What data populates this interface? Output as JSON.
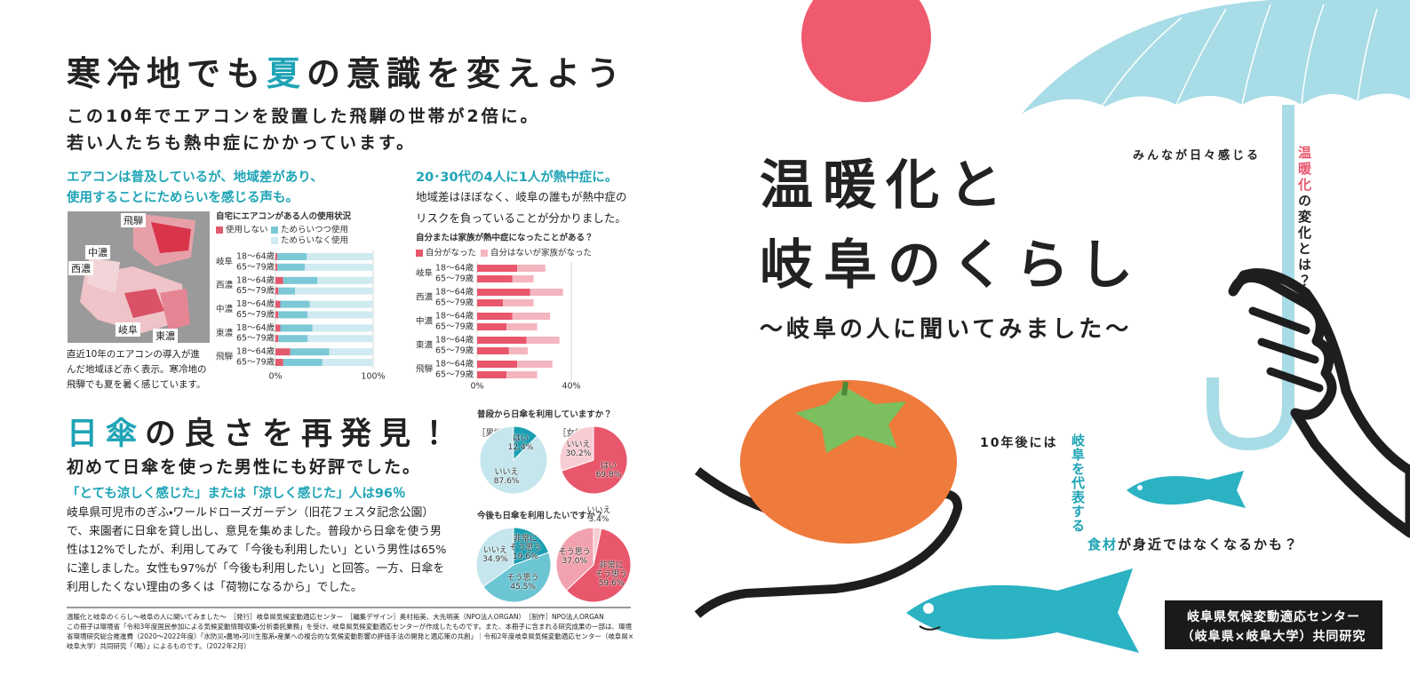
{
  "header": {
    "title": [
      "寒冷地でも",
      "夏",
      "の意識を変えよう"
    ],
    "lead": [
      "この10年でエアコンを設置した飛騨の世帯が2倍に。",
      "若い人たちも熱中症にかかっています。"
    ]
  },
  "aircon_section": {
    "heading": [
      "エアコンは普及しているが、地域差があり、",
      "使用することにためらいを感じる声も。"
    ],
    "map_labels": [
      "飛騨",
      "中濃",
      "西濃",
      "岐阜",
      "東濃"
    ],
    "map_caption": "直近10年のエアコンの導入が進んだ地域ほど赤く表示。寒冷地の飛騨でも夏を暑く感じています。"
  },
  "heat_section": {
    "heading": "20･30代の4人に1人が熱中症に。",
    "text": "地域差はほぼなく、岐阜の誰もが熱中症のリスクを負っていることが分かりました。"
  },
  "parasol_section": {
    "title": [
      "日傘",
      "の良さを再発見！"
    ],
    "subtitle": "初めて日傘を使った男性にも好評でした。",
    "highlight": "「とても涼しく感じた」または「涼しく感じた」人は96％",
    "body": "岐阜県可児市のぎふ・ワールドローズガーデン（旧花フェスタ記念公園）で、来園者に日傘を貸し出し、意見を集めました。普段から日傘を使う男性は12%でしたが、利用してみて「今後も利用したい」という男性は65%に達しました。女性も97%が「今後も利用したい」と回答。一方、日傘を利用したくない理由の多くは「荷物になるから」でした。"
  },
  "footer": {
    "lines": [
      "温暖化と岐阜のくらし〜岐阜の人に聞いてみました〜　［発行］岐阜県気候変動適応センター　［編集デザイン］奥村裕美、大先明美（NPO法人ORGAN）　［制作］NPO法人ORGAN",
      "この冊子は環境省「令和3年度国民参加による気候変動情報収集・分析委託業務」を受け、岐阜県気候変動適応センターが作成したものです。また、本冊子に含まれる研究成果の一部は、環境省環境研究総合推進費（2020〜2022年度）「水防災・農地・河川生態系・産業への複合的な気候変動影響の評価手法の開発と適応策の共創」｜令和2年度岐阜県気候変動適応センター（岐阜県×岐阜大学）共同研究「（略）」によるものです。（2022年2月）"
    ]
  },
  "cover": {
    "title": [
      "温暖化と",
      "岐阜のくらし"
    ],
    "subtitle": "〜岐阜の人に聞いてみました〜",
    "tagline": "みんなが日々感じる",
    "vertical": [
      "温暖化",
      "の変化とは？"
    ],
    "future": {
      "lead": "10年後には",
      "vertical": "岐阜を代表する",
      "tail": [
        "食材",
        "が身近ではなくなるかも？"
      ]
    },
    "credit": [
      "岐阜県気候変動適応センター",
      "（岐阜県×岐阜大学）共同研究"
    ]
  },
  "chart_data": [
    {
      "type": "bar",
      "title": "自宅にエアコンがある人の使用状況",
      "groups": [
        "岐阜",
        "西濃",
        "中濃",
        "東濃",
        "飛騨"
      ],
      "categories": [
        "18〜64歳",
        "65〜79歳",
        "18〜64歳",
        "65〜79歳",
        "18〜64歳",
        "65〜79歳",
        "18〜64歳",
        "65〜79歳",
        "18〜64歳",
        "65〜79歳"
      ],
      "series": [
        {
          "name": "使用しない",
          "color": "#e25a6e",
          "values": [
            2,
            2,
            8,
            3,
            5,
            3,
            5,
            3,
            15,
            8
          ]
        },
        {
          "name": "ためらいつつ使用",
          "color": "#7cc8d6",
          "values": [
            30,
            28,
            35,
            17,
            30,
            30,
            33,
            30,
            40,
            40
          ]
        },
        {
          "name": "ためらいなく使用",
          "color": "#cfeaf0",
          "values": [
            68,
            70,
            57,
            80,
            65,
            67,
            62,
            67,
            45,
            52
          ]
        }
      ],
      "xlim": [
        0,
        100
      ],
      "xticks": [
        {
          "value": 0,
          "label": "0%"
        },
        {
          "value": 100,
          "label": "100%"
        }
      ],
      "grid": true
    },
    {
      "type": "bar",
      "title": "自分または家族が熱中症になったことがある？",
      "groups": [
        "岐阜",
        "西濃",
        "中濃",
        "東濃",
        "飛騨"
      ],
      "categories": [
        "18〜64歳",
        "65〜79歳",
        "18〜64歳",
        "65〜79歳",
        "18〜64歳",
        "65〜79歳",
        "18〜64歳",
        "65〜79歳",
        "18〜64歳",
        "65〜79歳"
      ],
      "series": [
        {
          "name": "自分がなった",
          "color": "#e8576b",
          "values": [
            17,
            15,
            22.5,
            11,
            15,
            12.5,
            21,
            13.5,
            17,
            12.5
          ]
        },
        {
          "name": "自分はないが家族がなった",
          "color": "#f4b5bf",
          "values": [
            12,
            9,
            14,
            13,
            16,
            13,
            14,
            8,
            15,
            13
          ]
        }
      ],
      "xlim": [
        0,
        40
      ],
      "xticks": [
        {
          "value": 0,
          "label": "0%"
        },
        {
          "value": 40,
          "label": "40%"
        }
      ],
      "grid": true
    },
    {
      "type": "pie",
      "title": "普段から日傘を利用していますか？",
      "pies": [
        {
          "label": "［男性］",
          "categories": [
            "はい",
            "いいえ"
          ],
          "values": [
            12.4,
            87.6
          ],
          "value_labels": [
            "12.4%",
            "87.6%"
          ],
          "colors": [
            "#1b9fb2",
            "#c5e6ec"
          ]
        },
        {
          "label": "［女性］",
          "categories": [
            "はい",
            "いいえ"
          ],
          "values": [
            69.8,
            30.2
          ],
          "value_labels": [
            "69.8%",
            "30.2%"
          ],
          "colors": [
            "#e8576b",
            "#f7ccd2"
          ]
        }
      ]
    },
    {
      "type": "pie",
      "title": "今後も日傘を利用したいですか？",
      "pies": [
        {
          "categories": [
            "非常に\nそう思う",
            "そう思う",
            "いいえ"
          ],
          "values": [
            19.6,
            45.5,
            34.9
          ],
          "value_labels": [
            "19.6%",
            "45.5%",
            "34.9%"
          ],
          "colors": [
            "#1b9fb2",
            "#6cc5d3",
            "#c5e6ec"
          ]
        },
        {
          "categories": [
            "いいえ",
            "非常に\nそう思う",
            "そう思う"
          ],
          "values": [
            3.4,
            59.6,
            37.0
          ],
          "value_labels": [
            "3.4%",
            "59.6%",
            "37.0%"
          ],
          "colors": [
            "#f7ccd2",
            "#e8576b",
            "#f2a2ae"
          ]
        }
      ]
    }
  ]
}
